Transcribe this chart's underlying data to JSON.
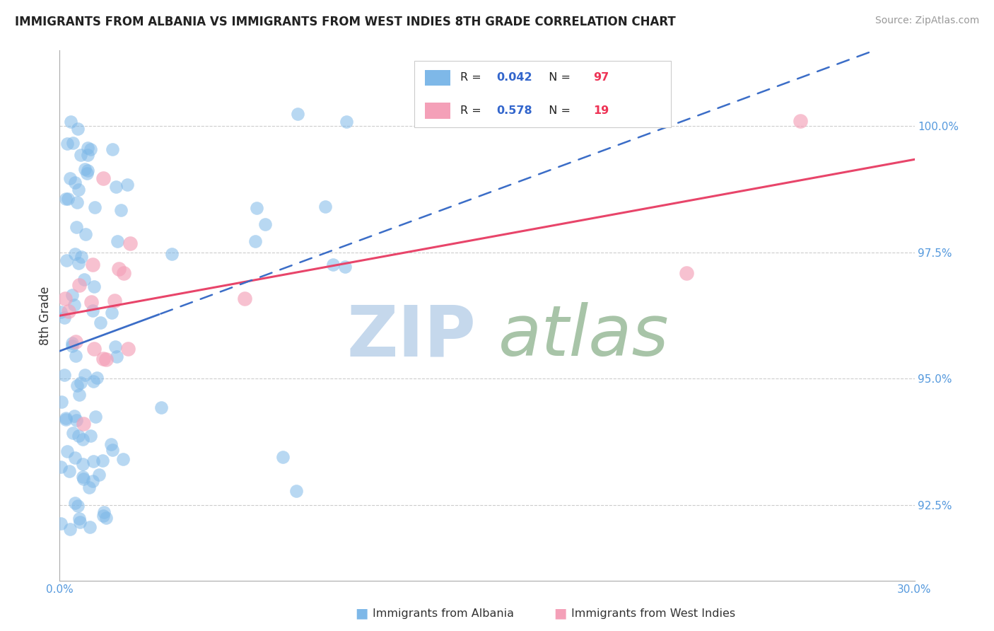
{
  "title": "IMMIGRANTS FROM ALBANIA VS IMMIGRANTS FROM WEST INDIES 8TH GRADE CORRELATION CHART",
  "source": "Source: ZipAtlas.com",
  "ylabel": "8th Grade",
  "y_ticks": [
    92.5,
    95.0,
    97.5,
    100.0
  ],
  "xlim": [
    0.0,
    30.0
  ],
  "ylim": [
    91.0,
    101.5
  ],
  "albania_R": 0.042,
  "albania_N": 97,
  "westindies_R": 0.578,
  "westindies_N": 19,
  "albania_color": "#7EB8E8",
  "westindies_color": "#F4A0B8",
  "albania_line_color": "#3B6DC7",
  "westindies_line_color": "#E8456A",
  "legend_label_albania": "Immigrants from Albania",
  "legend_label_westindies": "Immigrants from West Indies",
  "watermark_zip_color": "#C5D8EC",
  "watermark_atlas_color": "#A8C4A8",
  "background_color": "#FFFFFF",
  "x_ticks": [
    0.0,
    30.0
  ],
  "x_tick_labels": [
    "0.0%",
    "30.0%"
  ],
  "title_fontsize": 12,
  "source_fontsize": 10,
  "tick_color": "#5599DD",
  "ylabel_color": "#333333",
  "scatter_size": 180,
  "scatter_alpha": 0.55,
  "legend_R_color": "#3366CC",
  "legend_N_color": "#EE3355"
}
